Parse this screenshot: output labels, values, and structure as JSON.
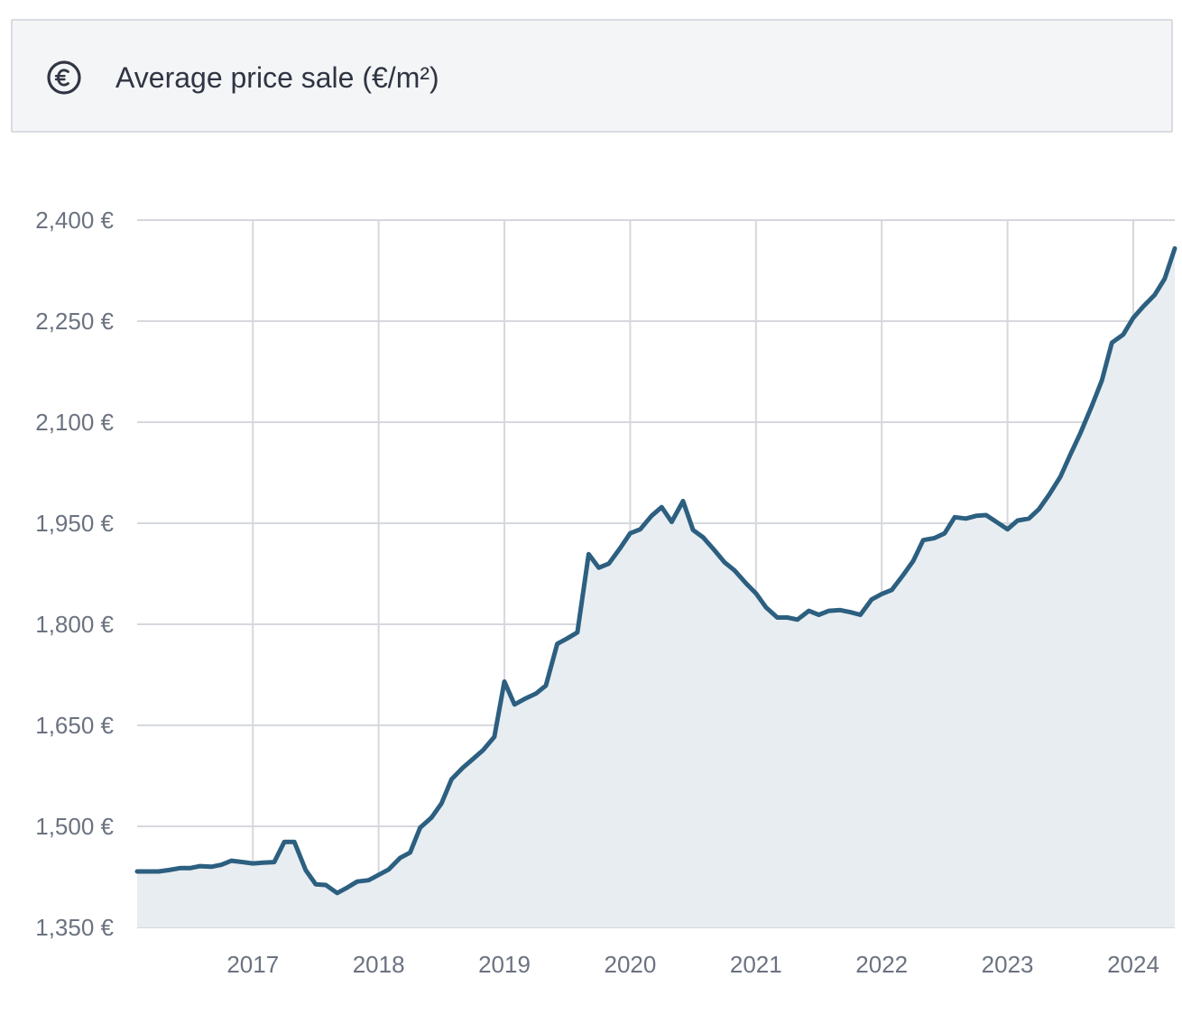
{
  "header": {
    "title": "Average price sale (€/m²)",
    "icon": "euro-coin-icon"
  },
  "colors": {
    "line": "#2c5f80",
    "area": "#e8edf1",
    "grid": "#d6d8de",
    "header_bg": "#f4f5f7",
    "header_border": "#d9dbe1",
    "tick_text": "#6b7280"
  },
  "chart_data": {
    "type": "area",
    "title": "Average price sale (€/m²)",
    "xlabel": "",
    "ylabel": "",
    "ylim": [
      1350,
      2400
    ],
    "xlim": [
      2016.08,
      2024.33
    ],
    "grid": true,
    "y_ticks": [
      1350,
      1500,
      1650,
      1800,
      1950,
      2100,
      2250,
      2400
    ],
    "y_tick_labels": [
      "1,350 €",
      "1,500 €",
      "1,650 €",
      "1,800 €",
      "1,950 €",
      "2,100 €",
      "2,250 €",
      "2,400 €"
    ],
    "x_ticks": [
      2017,
      2018,
      2019,
      2020,
      2021,
      2022,
      2023,
      2024
    ],
    "x_tick_labels": [
      "2017",
      "2018",
      "2019",
      "2020",
      "2021",
      "2022",
      "2023",
      "2024"
    ],
    "series": [
      {
        "x": [
          2016.08,
          2016.25,
          2016.33,
          2016.42,
          2016.5,
          2016.58,
          2016.67,
          2016.75,
          2016.83,
          2016.92,
          2017.0,
          2017.08,
          2017.17,
          2017.25,
          2017.33,
          2017.42,
          2017.5,
          2017.58,
          2017.67,
          2017.75,
          2017.83,
          2017.92,
          2018.0,
          2018.08,
          2018.17,
          2018.25,
          2018.33,
          2018.42,
          2018.5,
          2018.58,
          2018.67,
          2018.75,
          2018.83,
          2018.92,
          2019.0,
          2019.08,
          2019.17,
          2019.25,
          2019.33,
          2019.42,
          2019.5,
          2019.58,
          2019.67,
          2019.75,
          2019.83,
          2019.92,
          2020.0,
          2020.08,
          2020.17,
          2020.25,
          2020.33,
          2020.42,
          2020.5,
          2020.58,
          2020.67,
          2020.75,
          2020.83,
          2020.92,
          2021.0,
          2021.08,
          2021.17,
          2021.25,
          2021.33,
          2021.42,
          2021.5,
          2021.58,
          2021.67,
          2021.75,
          2021.83,
          2021.92,
          2022.0,
          2022.08,
          2022.17,
          2022.25,
          2022.33,
          2022.42,
          2022.5,
          2022.58,
          2022.67,
          2022.75,
          2022.83,
          2022.92,
          2023.0,
          2023.08,
          2023.17,
          2023.25,
          2023.33,
          2023.42,
          2023.5,
          2023.58,
          2023.67,
          2023.75,
          2023.83,
          2023.92,
          2024.0,
          2024.08,
          2024.17,
          2024.25,
          2024.33
        ],
        "y": [
          1433,
          1433,
          1435,
          1438,
          1438,
          1441,
          1440,
          1443,
          1449,
          1447,
          1445,
          1446,
          1447,
          1477,
          1477,
          1435,
          1414,
          1413,
          1401,
          1409,
          1418,
          1420,
          1428,
          1436,
          1453,
          1461,
          1498,
          1513,
          1534,
          1570,
          1587,
          1600,
          1613,
          1633,
          1715,
          1681,
          1690,
          1697,
          1709,
          1771,
          1779,
          1788,
          1904,
          1884,
          1890,
          1913,
          1935,
          1941,
          1961,
          1974,
          1952,
          1983,
          1940,
          1929,
          1910,
          1892,
          1880,
          1861,
          1846,
          1825,
          1810,
          1810,
          1807,
          1820,
          1814,
          1820,
          1821,
          1818,
          1814,
          1837,
          1845,
          1851,
          1873,
          1894,
          1925,
          1928,
          1935,
          1959,
          1957,
          1961,
          1962,
          1951,
          1941,
          1954,
          1957,
          1971,
          1992,
          2019,
          2052,
          2084,
          2124,
          2162,
          2218,
          2230,
          2255,
          2272,
          2289,
          2313,
          2358
        ]
      }
    ]
  }
}
